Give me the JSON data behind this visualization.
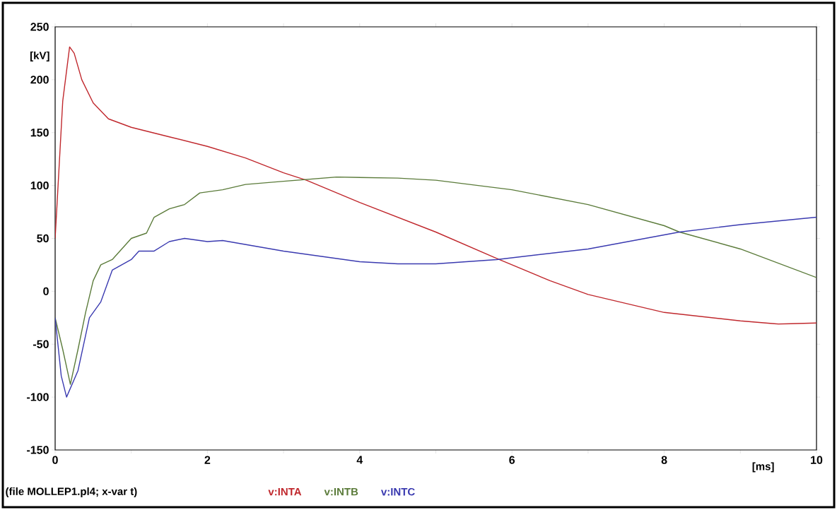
{
  "chart_data": {
    "type": "line",
    "xlabel": "[ms]",
    "ylabel": "[kV]",
    "xlim": [
      0,
      10
    ],
    "ylim": [
      -150,
      250
    ],
    "xticks": [
      0,
      {
        "value": 1,
        "label": null
      },
      2,
      {
        "value": 3,
        "label": null
      },
      4,
      {
        "value": 5,
        "label": null
      },
      6,
      {
        "value": 7,
        "label": null
      },
      8,
      {
        "value": 9,
        "label": null
      },
      10
    ],
    "yticks": [
      -150,
      -100,
      -50,
      0,
      50,
      100,
      150,
      200,
      250
    ],
    "legend": "bottom",
    "annotations": [
      "(file MOLLEP1.pl4; x-var t)"
    ],
    "series": [
      {
        "name": "v:INTA",
        "color": "#c0282d",
        "x": [
          0,
          0.1,
          0.19,
          0.25,
          0.35,
          0.5,
          0.7,
          1.0,
          1.5,
          2.0,
          2.5,
          3.0,
          3.3,
          4.0,
          5.0,
          5.8,
          6.5,
          7.0,
          8.0,
          9.0,
          9.5,
          10
        ],
        "values": [
          50,
          180,
          231,
          225,
          200,
          178,
          163,
          155,
          146,
          137,
          126,
          112,
          105,
          84,
          56,
          31,
          10,
          -3,
          -20,
          -28,
          -31,
          -30
        ]
      },
      {
        "name": "v:INTB",
        "color": "#5b7b3a",
        "x": [
          0,
          0.1,
          0.2,
          0.3,
          0.4,
          0.5,
          0.6,
          0.75,
          1.0,
          1.2,
          1.3,
          1.5,
          1.7,
          1.9,
          2.2,
          2.5,
          3.0,
          3.7,
          4.5,
          5.0,
          6.0,
          7.0,
          8.0,
          8.2,
          9.0,
          10
        ],
        "values": [
          -25,
          -55,
          -88,
          -55,
          -20,
          10,
          25,
          30,
          50,
          55,
          70,
          78,
          82,
          93,
          96,
          101,
          104,
          108,
          107,
          105,
          96,
          82,
          62,
          56,
          40,
          13
        ]
      },
      {
        "name": "v:INTC",
        "color": "#3a3ab0",
        "x": [
          0,
          0.08,
          0.15,
          0.3,
          0.45,
          0.6,
          0.75,
          1.0,
          1.1,
          1.3,
          1.5,
          1.7,
          2.0,
          2.2,
          3.0,
          4.0,
          4.5,
          5.0,
          5.8,
          7.0,
          8.2,
          9.0,
          10
        ],
        "values": [
          -25,
          -80,
          -100,
          -75,
          -25,
          -10,
          20,
          30,
          38,
          38,
          47,
          50,
          47,
          48,
          38,
          28,
          26,
          26,
          30,
          40,
          56,
          63,
          70
        ]
      }
    ]
  }
}
